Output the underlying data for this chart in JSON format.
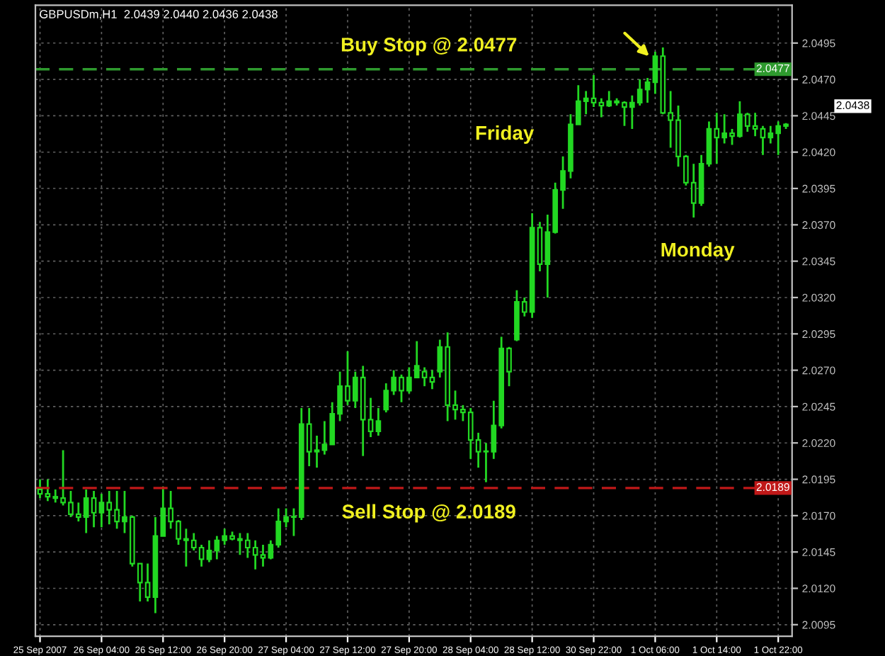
{
  "chart_data": {
    "type": "candlestick",
    "title": "GBPUSDm,H1  2.0439 2.0440 2.0436 2.0438",
    "color": "#22d822",
    "categories": [
      "25 Sep 2007",
      null,
      null,
      null,
      null,
      null,
      null,
      null,
      "26 Sep 04:00",
      null,
      null,
      null,
      null,
      null,
      null,
      null,
      "26 Sep 12:00",
      null,
      null,
      null,
      null,
      null,
      null,
      null,
      "26 Sep 20:00",
      null,
      null,
      null,
      null,
      null,
      null,
      null,
      "27 Sep 04:00",
      null,
      null,
      null,
      null,
      null,
      null,
      null,
      "27 Sep 12:00",
      null,
      null,
      null,
      null,
      null,
      null,
      null,
      "27 Sep 20:00",
      null,
      null,
      null,
      null,
      null,
      null,
      null,
      "28 Sep 04:00",
      null,
      null,
      null,
      null,
      null,
      null,
      null,
      "28 Sep 12:00",
      null,
      null,
      null,
      null,
      null,
      null,
      null,
      "30 Sep 22:00",
      null,
      null,
      null,
      null,
      null,
      null,
      null,
      "1 Oct 06:00",
      null,
      null,
      null,
      null,
      null,
      null,
      null,
      "1 Oct 14:00",
      null,
      null,
      null,
      null,
      null,
      null,
      null,
      "1 Oct 22:00",
      null
    ],
    "ohlc": [
      [
        2.0188,
        2.0195,
        2.0182,
        2.0185
      ],
      [
        2.0185,
        2.0195,
        2.018,
        2.0183
      ],
      [
        2.0183,
        2.0188,
        2.0179,
        2.0182
      ],
      [
        2.0182,
        2.0215,
        2.0177,
        2.0179
      ],
      [
        2.0179,
        2.0187,
        2.0169,
        2.0171
      ],
      [
        2.0171,
        2.0179,
        2.0166,
        2.0169
      ],
      [
        2.0169,
        2.0188,
        2.0158,
        2.0182
      ],
      [
        2.0182,
        2.0187,
        2.0162,
        2.0172
      ],
      [
        2.0172,
        2.0185,
        2.0162,
        2.0179
      ],
      [
        2.0179,
        2.0187,
        2.0164,
        2.0174
      ],
      [
        2.0174,
        2.0187,
        2.0161,
        2.0166
      ],
      [
        2.0166,
        2.0187,
        2.0158,
        2.0169
      ],
      [
        2.0169,
        2.017,
        2.0135,
        2.0137
      ],
      [
        2.0137,
        2.0137,
        2.0111,
        2.0124
      ],
      [
        2.0124,
        2.0137,
        2.0111,
        2.0114
      ],
      [
        2.0114,
        2.0169,
        2.0103,
        2.0156
      ],
      [
        2.0156,
        2.019,
        2.0156,
        2.0175
      ],
      [
        2.0175,
        2.0187,
        2.0161,
        2.0166
      ],
      [
        2.0166,
        2.0167,
        2.015,
        2.0154
      ],
      [
        2.0154,
        2.0161,
        2.0135,
        2.0153
      ],
      [
        2.0153,
        2.0158,
        2.0146,
        2.0148
      ],
      [
        2.0148,
        2.015,
        2.0135,
        2.014
      ],
      [
        2.014,
        2.0153,
        2.0138,
        2.0146
      ],
      [
        2.0146,
        2.0156,
        2.014,
        2.0153
      ],
      [
        2.0153,
        2.0161,
        2.015,
        2.0156
      ],
      [
        2.0156,
        2.0159,
        2.0153,
        2.0154
      ],
      [
        2.0154,
        2.0158,
        2.0143,
        2.0153
      ],
      [
        2.0153,
        2.0158,
        2.0141,
        2.0148
      ],
      [
        2.0148,
        2.0153,
        2.0133,
        2.0143
      ],
      [
        2.0143,
        2.015,
        2.0135,
        2.0141
      ],
      [
        2.0141,
        2.0153,
        2.014,
        2.015
      ],
      [
        2.015,
        2.0175,
        2.0148,
        2.0166
      ],
      [
        2.0166,
        2.0175,
        2.0162,
        2.0169
      ],
      [
        2.0169,
        2.0175,
        2.0156,
        2.0169
      ],
      [
        2.0169,
        2.0244,
        2.0167,
        2.0233
      ],
      [
        2.0233,
        2.0244,
        2.0204,
        2.0214
      ],
      [
        2.0214,
        2.0225,
        2.0203,
        2.0215
      ],
      [
        2.0215,
        2.0235,
        2.0212,
        2.0219
      ],
      [
        2.0219,
        2.0248,
        2.0219,
        2.024
      ],
      [
        2.024,
        2.0269,
        2.0235,
        2.0259
      ],
      [
        2.0259,
        2.0283,
        2.0246,
        2.0249
      ],
      [
        2.0249,
        2.0269,
        2.0244,
        2.0265
      ],
      [
        2.0265,
        2.0273,
        2.0211,
        2.0236
      ],
      [
        2.0236,
        2.0251,
        2.0224,
        2.0228
      ],
      [
        2.0228,
        2.0244,
        2.0225,
        2.0235
      ],
      [
        2.0243,
        2.0261,
        2.0241,
        2.0256
      ],
      [
        2.0256,
        2.027,
        2.0253,
        2.0265
      ],
      [
        2.0265,
        2.0267,
        2.0248,
        2.0256
      ],
      [
        2.0256,
        2.0272,
        2.0254,
        2.0265
      ],
      [
        2.0265,
        2.029,
        2.0265,
        2.0273
      ],
      [
        2.0269,
        2.0272,
        2.0259,
        2.0265
      ],
      [
        2.0265,
        2.027,
        2.0257,
        2.0262
      ],
      [
        2.0269,
        2.0291,
        2.0265,
        2.0286
      ],
      [
        2.0286,
        2.0296,
        2.0235,
        2.0246
      ],
      [
        2.0246,
        2.0256,
        2.0236,
        2.0243
      ],
      [
        2.0243,
        2.0246,
        2.0235,
        2.0241
      ],
      [
        2.0241,
        2.0244,
        2.0209,
        2.0222
      ],
      [
        2.0222,
        2.0227,
        2.0203,
        2.0214
      ],
      [
        2.0214,
        2.022,
        2.0193,
        2.0214
      ],
      [
        2.0214,
        2.0249,
        2.0209,
        2.0232
      ],
      [
        2.0232,
        2.0293,
        2.023,
        2.0285
      ],
      [
        2.0285,
        2.0286,
        2.0259,
        2.0269
      ],
      [
        2.0291,
        2.0325,
        2.029,
        2.0317
      ],
      [
        2.0317,
        2.032,
        2.0307,
        2.031
      ],
      [
        2.031,
        2.0378,
        2.0306,
        2.0368
      ],
      [
        2.0368,
        2.0372,
        2.0338,
        2.0343
      ],
      [
        2.0343,
        2.0377,
        2.032,
        2.0365
      ],
      [
        2.0365,
        2.0399,
        2.0364,
        2.0394
      ],
      [
        2.0394,
        2.0417,
        2.0381,
        2.0407
      ],
      [
        2.0407,
        2.0446,
        2.0402,
        2.0439
      ],
      [
        2.0439,
        2.0466,
        2.0439,
        2.0455
      ],
      [
        2.0455,
        2.0462,
        2.0446,
        2.0457
      ],
      [
        2.0457,
        2.0473,
        2.0451,
        2.0454
      ],
      [
        2.0454,
        2.0457,
        2.0444,
        2.0452
      ],
      [
        2.0452,
        2.0462,
        2.0451,
        2.0455
      ],
      [
        2.0455,
        2.0457,
        2.0452,
        2.0454
      ],
      [
        2.0454,
        2.0455,
        2.0438,
        2.0451
      ],
      [
        2.0451,
        2.0459,
        2.0436,
        2.0454
      ],
      [
        2.0454,
        2.047,
        2.0452,
        2.0463
      ],
      [
        2.0463,
        2.0471,
        2.0454,
        2.0468
      ],
      [
        2.0468,
        2.0489,
        2.046,
        2.0486
      ],
      [
        2.0486,
        2.0492,
        2.0446,
        2.0447
      ],
      [
        2.0447,
        2.0462,
        2.0423,
        2.0442
      ],
      [
        2.0442,
        2.0452,
        2.041,
        2.0417
      ],
      [
        2.0417,
        2.0418,
        2.0397,
        2.0399
      ],
      [
        2.0399,
        2.0412,
        2.0375,
        2.0385
      ],
      [
        2.0385,
        2.0418,
        2.0383,
        2.0412
      ],
      [
        2.0412,
        2.0441,
        2.041,
        2.0436
      ],
      [
        2.0436,
        2.0447,
        2.0412,
        2.043
      ],
      [
        2.043,
        2.0446,
        2.0426,
        2.0433
      ],
      [
        2.0433,
        2.0436,
        2.0425,
        2.0431
      ],
      [
        2.0431,
        2.0455,
        2.043,
        2.0446
      ],
      [
        2.0446,
        2.0447,
        2.0434,
        2.0438
      ],
      [
        2.0438,
        2.0447,
        2.0431,
        2.0436
      ],
      [
        2.0436,
        2.0438,
        2.0418,
        2.043
      ],
      [
        2.043,
        2.0438,
        2.0426,
        2.0433
      ],
      [
        2.0433,
        2.0441,
        2.0418,
        2.0438
      ],
      [
        2.0439,
        2.044,
        2.0436,
        2.0438
      ]
    ],
    "ylim": [
      2.0087,
      2.0521
    ],
    "yticks": [
      2.0095,
      {
        "value": 2.012,
        "label": "2.0120"
      },
      2.0145,
      {
        "value": 2.017,
        "label": "2.0170"
      },
      2.0195,
      {
        "value": 2.022,
        "label": "2.0220"
      },
      2.0245,
      {
        "value": 2.027,
        "label": "2.0270"
      },
      2.0295,
      {
        "value": 2.032,
        "label": "2.0320"
      },
      2.0345,
      {
        "value": 2.037,
        "label": "2.0370"
      },
      2.0395,
      {
        "value": 2.042,
        "label": "2.0420"
      },
      2.0445,
      {
        "value": 2.047,
        "label": "2.0470"
      },
      2.0495
    ],
    "ref_lines": [
      {
        "axis": "y",
        "value": 2.0477,
        "label": "2.0477",
        "color": "#2e9a2e",
        "line_style": "dashed"
      },
      {
        "axis": "y",
        "value": 2.0189,
        "label": "2.0189",
        "color": "#c01818",
        "line_style": "dashed"
      }
    ],
    "annotations": [
      "Buy Stop @ 2.0477",
      "Friday",
      "Monday",
      "Sell Stop @ 2.0189",
      "2.0438"
    ],
    "grid": true
  }
}
